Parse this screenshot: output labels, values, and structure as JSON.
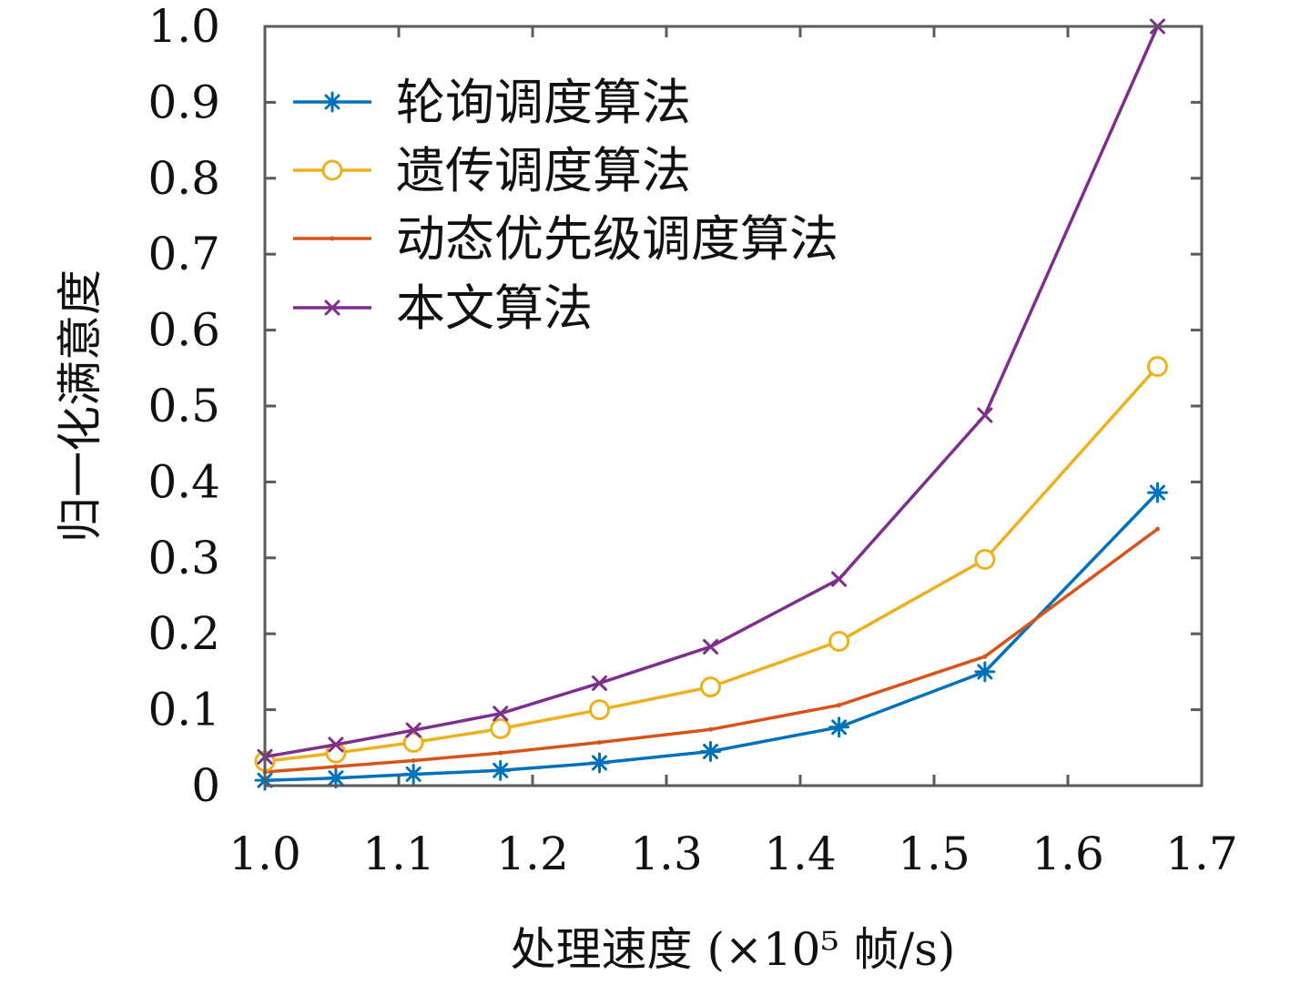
{
  "chart_data": {
    "type": "line",
    "xlabel": "处理速度 (×10⁵ 帧/s)",
    "ylabel": "归一化满意度",
    "xlim": [
      1.0,
      1.7
    ],
    "ylim": [
      0,
      1.0
    ],
    "x_ticks": [
      "1.0",
      "1.1",
      "1.2",
      "1.3",
      "1.4",
      "1.5",
      "1.6",
      "1.7"
    ],
    "y_ticks": [
      "0",
      "0.1",
      "0.2",
      "0.3",
      "0.4",
      "0.5",
      "0.6",
      "0.7",
      "0.8",
      "0.9",
      "1.0"
    ],
    "grid": false,
    "legend_position": "top-left",
    "x": [
      1.0,
      1.053,
      1.111,
      1.176,
      1.25,
      1.333,
      1.429,
      1.538,
      1.667
    ],
    "series": [
      {
        "name": "轮询调度算法",
        "color": "#0072BD",
        "marker": "asterisk",
        "values": [
          0.007,
          0.01,
          0.015,
          0.02,
          0.03,
          0.045,
          0.077,
          0.15,
          0.386
        ]
      },
      {
        "name": "遗传调度算法",
        "color": "#EDB120",
        "marker": "circle",
        "values": [
          0.032,
          0.043,
          0.057,
          0.075,
          0.1,
          0.13,
          0.19,
          0.298,
          0.552
        ]
      },
      {
        "name": "动态优先级调度算法",
        "color": "#D95319",
        "marker": "dot",
        "values": [
          0.018,
          0.025,
          0.033,
          0.043,
          0.057,
          0.074,
          0.106,
          0.17,
          0.338
        ]
      },
      {
        "name": "本文算法",
        "color": "#7E2F8E",
        "marker": "cross",
        "values": [
          0.038,
          0.054,
          0.073,
          0.095,
          0.135,
          0.183,
          0.272,
          0.488,
          1.0
        ]
      }
    ]
  }
}
